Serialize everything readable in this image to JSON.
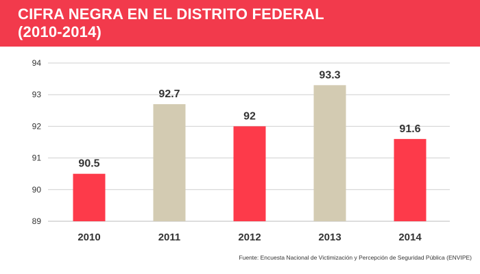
{
  "header": {
    "title_line1": "CIFRA NEGRA EN EL DISTRITO FEDERAL",
    "title_line2": "(2010-2014)"
  },
  "colors": {
    "banner": "#f23a4c",
    "bar_red": "#fd3a4a",
    "bar_beige": "#d3cbb2",
    "grid": "#cfcfcf",
    "text": "#333333"
  },
  "chart_data": {
    "type": "bar",
    "title": "CIFRA NEGRA EN EL DISTRITO FEDERAL (2010-2014)",
    "xlabel": "",
    "ylabel": "",
    "categories": [
      "2010",
      "2011",
      "2012",
      "2013",
      "2014"
    ],
    "values": [
      90.5,
      92.7,
      92,
      93.3,
      91.6
    ],
    "value_labels": [
      "90.5",
      "92.7",
      "92",
      "93.3",
      "91.6"
    ],
    "bar_colors": [
      "#fd3a4a",
      "#d3cbb2",
      "#fd3a4a",
      "#d3cbb2",
      "#fd3a4a"
    ],
    "ylim": [
      89,
      94
    ],
    "yticks": [
      "89",
      "90",
      "91",
      "92",
      "93",
      "94"
    ],
    "grid": true,
    "legend": "none"
  },
  "footer": {
    "source": "Fuente: Encuesta Nacional de Victimización y Percepción de Seguridad Pública (ENVIPE)"
  }
}
